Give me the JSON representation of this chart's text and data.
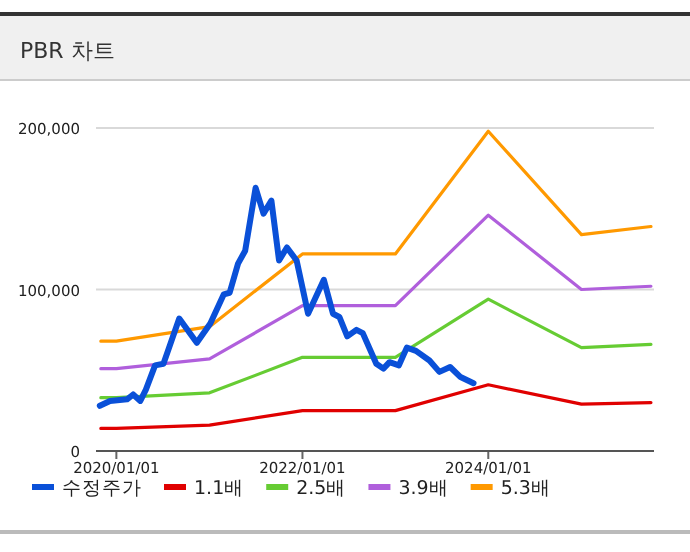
{
  "chart_data": {
    "type": "line",
    "title": "PBR 차트",
    "xlim": [
      "2019-10-13",
      "2025-10-13"
    ],
    "xticks": [
      {
        "value": "2020-01-01",
        "label": "2020/01/01"
      },
      {
        "value": "2022-01-01",
        "label": "2022/01/01"
      },
      {
        "value": "2024-01-01",
        "label": "2024/01/01"
      }
    ],
    "ylim": [
      0,
      200000
    ],
    "yticks": [
      {
        "value": 0,
        "label": "0"
      },
      {
        "value": 100000,
        "label": "100,000"
      },
      {
        "value": 200000,
        "label": "200,000"
      }
    ],
    "grid": "y",
    "legend": "bottom",
    "marker": "none",
    "line_style": "solid",
    "series": [
      {
        "name": "수정주가",
        "color": "#0a50d8",
        "x": [
          "2019-10-28",
          "2019-12-07",
          "2020-02-12",
          "2020-03-07",
          "2020-04-04",
          "2020-04-26",
          "2020-06-01",
          "2020-07-04",
          "2020-09-04",
          "2020-11-12",
          "2021-01-04",
          "2021-02-26",
          "2021-03-21",
          "2021-04-23",
          "2021-05-21",
          "2021-07-01",
          "2021-08-01",
          "2021-09-01",
          "2021-10-01",
          "2021-11-01",
          "2021-12-09",
          "2022-01-23",
          "2022-03-26",
          "2022-05-01",
          "2022-05-26",
          "2022-06-26",
          "2022-08-01",
          "2022-08-26",
          "2022-10-18",
          "2022-11-15",
          "2022-12-09",
          "2023-01-15",
          "2023-02-15",
          "2023-03-23",
          "2023-05-15",
          "2023-06-23",
          "2023-08-04",
          "2023-09-12",
          "2023-11-04"
        ],
        "values": [
          28000,
          31000,
          32000,
          35000,
          31000,
          38000,
          53000,
          54000,
          82000,
          67000,
          79000,
          97000,
          98000,
          116000,
          124000,
          163000,
          147000,
          155000,
          118000,
          126000,
          118000,
          85000,
          106000,
          85000,
          83000,
          71000,
          75000,
          73000,
          54000,
          51000,
          55000,
          53000,
          64000,
          62000,
          56000,
          49000,
          52000,
          46000,
          42000
        ]
      },
      {
        "name": "1.1배",
        "color": "#e00000",
        "x": [
          "2019-11-01",
          "2020-01-01",
          "2021-01-01",
          "2022-01-01",
          "2023-01-01",
          "2024-01-01",
          "2025-01-01",
          "2025-10-01"
        ],
        "values": [
          14000,
          14000,
          16000,
          25000,
          25000,
          41000,
          29000,
          30000
        ]
      },
      {
        "name": "2.5배",
        "color": "#66cc33",
        "x": [
          "2019-11-01",
          "2020-01-01",
          "2021-01-01",
          "2022-01-01",
          "2023-01-01",
          "2024-01-01",
          "2025-01-01",
          "2025-10-01"
        ],
        "values": [
          33000,
          33000,
          36000,
          58000,
          58000,
          94000,
          64000,
          66000
        ]
      },
      {
        "name": "3.9배",
        "color": "#b05fdc",
        "x": [
          "2019-11-01",
          "2020-01-01",
          "2021-01-01",
          "2022-01-01",
          "2023-01-01",
          "2024-01-01",
          "2025-01-01",
          "2025-10-01"
        ],
        "values": [
          51000,
          51000,
          57000,
          90000,
          90000,
          146000,
          100000,
          102000
        ]
      },
      {
        "name": "5.3배",
        "color": "#ff9900",
        "x": [
          "2019-11-01",
          "2020-01-01",
          "2021-01-01",
          "2022-01-01",
          "2023-01-01",
          "2024-01-01",
          "2025-01-01",
          "2025-10-01"
        ],
        "values": [
          68000,
          68000,
          77000,
          122000,
          122000,
          198000,
          134000,
          139000
        ]
      }
    ]
  }
}
